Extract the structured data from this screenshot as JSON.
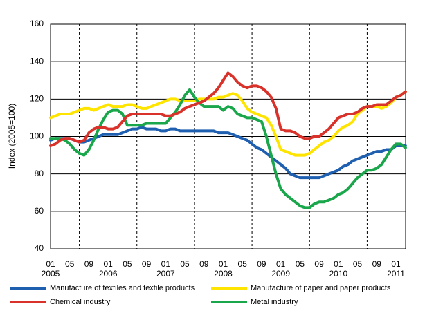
{
  "chart_data": {
    "type": "line",
    "y_label": "Index (2005=100)",
    "categories": [
      "01",
      null,
      null,
      null,
      "05",
      null,
      null,
      null,
      "09",
      null,
      null,
      null,
      "01",
      null,
      null,
      null,
      "05",
      null,
      null,
      null,
      "09",
      null,
      null,
      null,
      "01",
      null,
      null,
      null,
      "05",
      null,
      null,
      null,
      "09",
      null,
      null,
      null,
      "01",
      null,
      null,
      null,
      "05",
      null,
      null,
      null,
      "09",
      null,
      null,
      null,
      "01",
      null,
      null,
      null,
      "05",
      null,
      null,
      null,
      "09",
      null,
      null,
      null,
      "01",
      null,
      null,
      null,
      "05",
      null,
      null,
      null,
      "09",
      null,
      null,
      null,
      "01",
      null,
      null
    ],
    "years": [
      "2005",
      "2006",
      "2007",
      "2008",
      "2009",
      "2010",
      "2011"
    ],
    "ylim": [
      40,
      160
    ],
    "yticks": [
      40,
      60,
      80,
      100,
      120,
      140,
      160
    ],
    "grid": true,
    "series": [
      {
        "name": "Manufacture of textiles and textile products",
        "color": "#1f5fb0",
        "values": [
          98,
          99,
          99,
          99,
          99,
          98,
          97,
          97,
          98,
          99,
          100,
          101,
          101,
          101,
          101,
          102,
          103,
          104,
          104,
          105,
          104,
          104,
          104,
          103,
          103,
          104,
          104,
          103,
          103,
          103,
          103,
          103,
          103,
          103,
          103,
          102,
          102,
          102,
          101,
          100,
          99,
          98,
          96,
          94,
          93,
          91,
          89,
          87,
          85,
          83,
          80,
          79,
          78,
          78,
          78,
          78,
          78,
          79,
          80,
          81,
          82,
          84,
          85,
          87,
          88,
          89,
          90,
          91,
          92,
          92,
          93,
          93,
          95,
          95,
          95
        ]
      },
      {
        "name": "Manufacture of paper and paper products",
        "color": "#ffe400",
        "values": [
          110,
          111,
          112,
          112,
          112,
          113,
          114,
          115,
          115,
          114,
          115,
          116,
          117,
          116,
          116,
          116,
          117,
          117,
          116,
          115,
          115,
          116,
          117,
          118,
          119,
          120,
          120,
          119,
          119,
          119,
          119,
          120,
          120,
          120,
          120,
          121,
          121,
          122,
          123,
          122,
          119,
          115,
          113,
          112,
          111,
          110,
          106,
          100,
          93,
          92,
          91,
          90,
          90,
          90,
          91,
          93,
          95,
          97,
          98,
          100,
          103,
          105,
          106,
          108,
          112,
          114,
          116,
          116,
          116,
          115,
          116,
          118,
          121,
          122,
          124
        ]
      },
      {
        "name": "Chemical industry",
        "color": "#d8322a",
        "values": [
          95,
          96,
          98,
          99,
          99,
          98,
          97,
          98,
          102,
          104,
          105,
          105,
          104,
          104,
          105,
          108,
          111,
          112,
          112,
          112,
          112,
          112,
          112,
          112,
          111,
          111,
          112,
          113,
          115,
          116,
          117,
          118,
          119,
          121,
          123,
          126,
          130,
          134,
          132,
          129,
          127,
          126,
          127,
          127,
          126,
          124,
          121,
          115,
          104,
          103,
          103,
          102,
          100,
          99,
          99,
          100,
          100,
          102,
          104,
          107,
          110,
          111,
          112,
          112,
          113,
          115,
          116,
          116,
          117,
          117,
          117,
          119,
          121,
          122,
          124
        ]
      },
      {
        "name": "Metal industry",
        "color": "#1aa64a",
        "values": [
          99,
          99,
          99,
          98,
          96,
          93,
          91,
          90,
          93,
          98,
          104,
          109,
          113,
          114,
          114,
          112,
          106,
          106,
          106,
          106,
          107,
          107,
          107,
          107,
          107,
          110,
          113,
          117,
          122,
          125,
          121,
          118,
          116,
          116,
          116,
          116,
          114,
          116,
          115,
          112,
          111,
          110,
          110,
          109,
          108,
          100,
          90,
          80,
          72,
          69,
          67,
          65,
          63,
          62,
          62,
          64,
          65,
          65,
          66,
          67,
          69,
          70,
          72,
          75,
          78,
          80,
          82,
          82,
          83,
          85,
          89,
          93,
          96,
          96,
          94
        ]
      }
    ]
  }
}
